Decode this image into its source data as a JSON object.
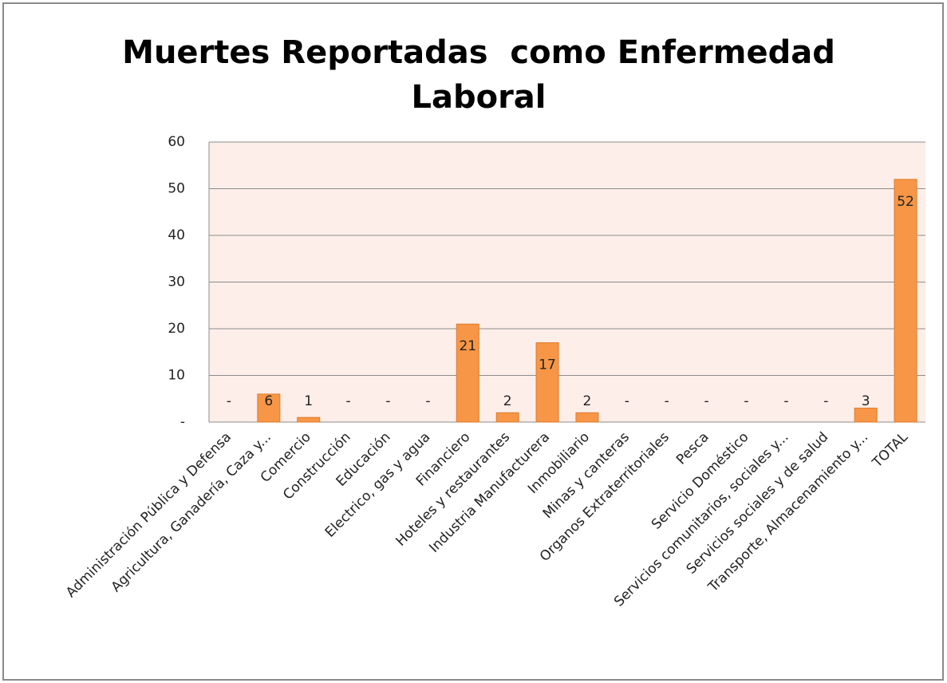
{
  "chart_data": {
    "type": "bar",
    "title": "Muertes Reportadas  como Enfermedad Laboral",
    "categories": [
      "Administración Pública y Defensa",
      "Agricultura, Ganadería, Caza y...",
      "Comercio",
      "Construcción",
      "Educación",
      "Electrico, gas y agua",
      "Financiero",
      "Hoteles y restaurantes",
      "Industria Manufacturera",
      "Inmobiliario",
      "Minas y canteras",
      "Organos Extraterritoriales",
      "Pesca",
      "Servicio Doméstico",
      "Servicios comunitarios, sociales y...",
      "Servicios sociales y de salud",
      "Transporte, Almacenamiento y...",
      "TOTAL"
    ],
    "values": [
      0,
      6,
      1,
      0,
      0,
      0,
      21,
      2,
      17,
      2,
      0,
      0,
      0,
      0,
      0,
      0,
      3,
      52
    ],
    "value_labels": [
      "-",
      "6",
      "1",
      "-",
      "-",
      "-",
      "21",
      "2",
      "17",
      "2",
      "-",
      "-",
      "-",
      "-",
      "-",
      "-",
      "3",
      "52"
    ],
    "color": "#f79646",
    "ylim": [
      0,
      60
    ],
    "yticks": [
      {
        "value": 0,
        "label": "-"
      },
      10,
      20,
      30,
      40,
      50,
      60
    ],
    "grid": true
  }
}
